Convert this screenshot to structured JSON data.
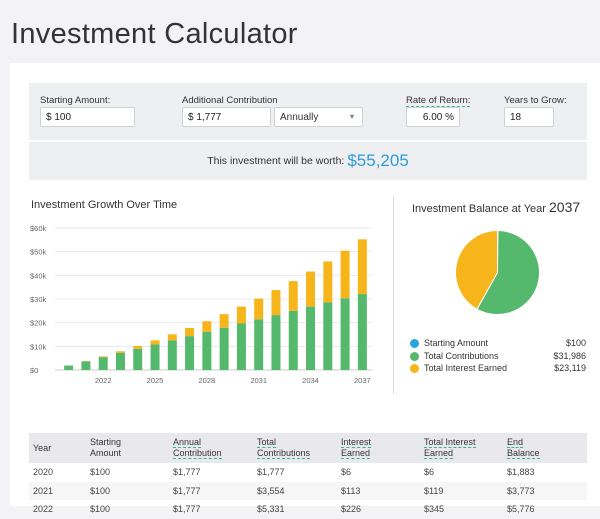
{
  "page_title": "Investment Calculator",
  "inputs": {
    "starting_amount_label": "Starting Amount:",
    "starting_amount": "$ 100",
    "additional_label": "Additional Contribution",
    "additional": "$ 1,777",
    "frequency": "Annually",
    "frequency_icon": "dropdown-arrow-icon",
    "frequency_arrow": "▾",
    "rate_label": "Rate of Return:",
    "rate": "6.00 %",
    "years_label": "Years to Grow:",
    "years": "18"
  },
  "result": {
    "text": "This investment will be worth:",
    "amount": "$55,205"
  },
  "chart_data": [
    {
      "type": "bar",
      "stacked": true,
      "title": "Investment Growth Over Time",
      "categories": [
        "2020",
        "2021",
        "2022",
        "2023",
        "2024",
        "2025",
        "2026",
        "2027",
        "2028",
        "2029",
        "2030",
        "2031",
        "2032",
        "2033",
        "2034",
        "2035",
        "2036",
        "2037"
      ],
      "x_tick_labels": [
        "2022",
        "2025",
        "2028",
        "2031",
        "2034",
        "2037"
      ],
      "y_tick_labels": [
        "$0",
        "$10k",
        "$20k",
        "$30k",
        "$40k",
        "$50k",
        "$60k"
      ],
      "ylim": [
        0,
        60000
      ],
      "series": [
        {
          "name": "Contributions",
          "color": "#55b96d",
          "values": [
            1877,
            3654,
            5431,
            7208,
            8985,
            10762,
            12539,
            14316,
            16093,
            17870,
            19647,
            21424,
            23201,
            24978,
            26755,
            28532,
            30309,
            32086
          ]
        },
        {
          "name": "Interest",
          "color": "#f7b51c",
          "values": [
            6,
            119,
            345,
            692,
            1166,
            1775,
            2527,
            3431,
            4496,
            5731,
            7147,
            8755,
            10566,
            12592,
            14846,
            17342,
            20094,
            23119
          ]
        }
      ]
    },
    {
      "type": "pie",
      "title": "Investment Balance at Year",
      "title_year": "2037",
      "slices": [
        {
          "name": "Starting Amount",
          "value": 100,
          "label": "$100",
          "color": "#2aa3e0"
        },
        {
          "name": "Total Contributions",
          "value": 31986,
          "label": "$31,986",
          "color": "#55b96d"
        },
        {
          "name": "Total Interest Earned",
          "value": 23119,
          "label": "$23,119",
          "color": "#f7b51c"
        }
      ]
    }
  ],
  "table": {
    "headers": [
      [
        "Year",
        ""
      ],
      [
        "Starting",
        "Amount"
      ],
      [
        "Annual",
        "Contribution"
      ],
      [
        "Total",
        "Contributions"
      ],
      [
        "Interest",
        "Earned"
      ],
      [
        "Total Interest",
        "Earned"
      ],
      [
        "End",
        "Balance"
      ]
    ],
    "rows": [
      [
        "2020",
        "$100",
        "$1,777",
        "$1,777",
        "$6",
        "$6",
        "$1,883"
      ],
      [
        "2021",
        "$100",
        "$1,777",
        "$3,554",
        "$113",
        "$119",
        "$3,773"
      ],
      [
        "2022",
        "$100",
        "$1,777",
        "$5,331",
        "$226",
        "$345",
        "$5,776"
      ]
    ]
  }
}
